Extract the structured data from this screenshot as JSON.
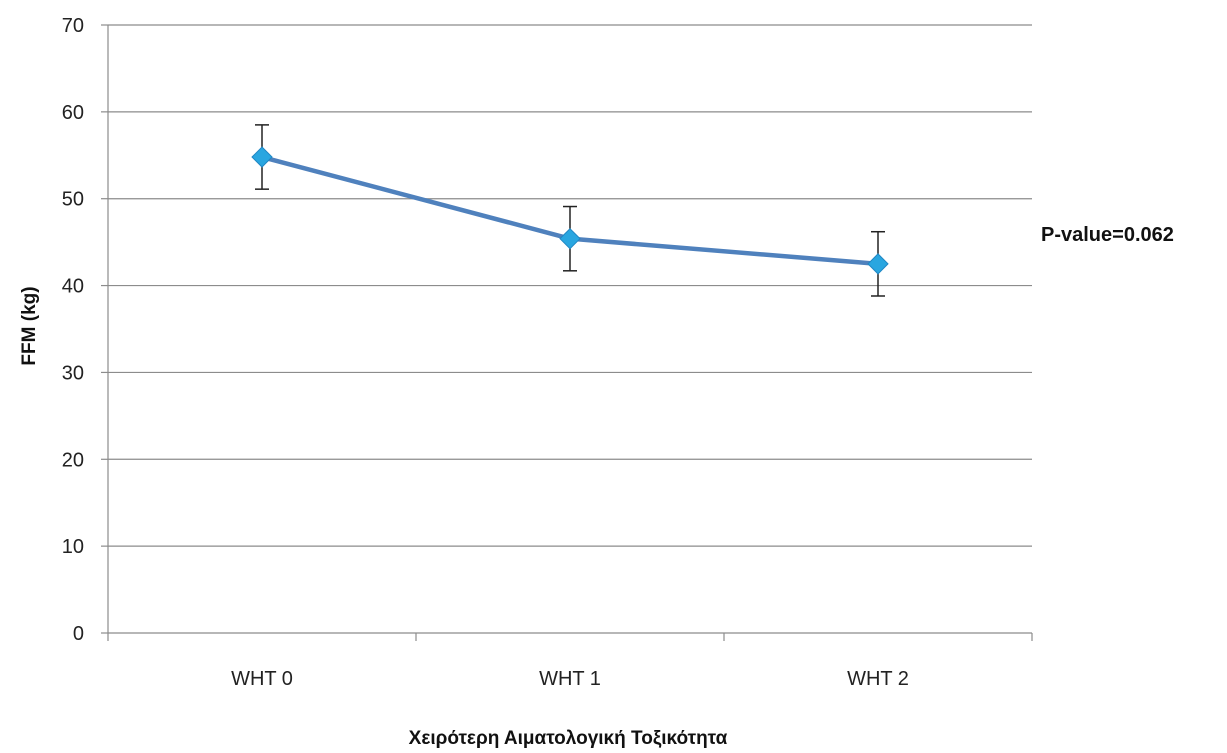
{
  "chart_data": {
    "type": "line",
    "title": "",
    "xlabel": "Χειρότερη Αιματολογική Τοξικότητα",
    "ylabel": "FFM (kg)",
    "categories": [
      "WHT 0",
      "WHT 1",
      "WHT 2"
    ],
    "series": [
      {
        "values": [
          54.8,
          45.4,
          42.5
        ],
        "error_low": [
          51.1,
          41.7,
          38.8
        ],
        "error_high": [
          58.5,
          49.1,
          46.2
        ]
      }
    ],
    "ylim": [
      0,
      70
    ],
    "yticks": [
      0,
      10,
      20,
      30,
      40,
      50,
      60,
      70
    ],
    "grid": true,
    "legend": "none",
    "annotations": [
      {
        "text": "P-value=0.062"
      }
    ],
    "colors": {
      "line": "#4f81bd",
      "marker": "#29a6e0",
      "marker_stroke": "#1f86c4",
      "grid": "#8c8c8c",
      "axis": "#8c8c8c",
      "error_bar": "#222222"
    }
  }
}
